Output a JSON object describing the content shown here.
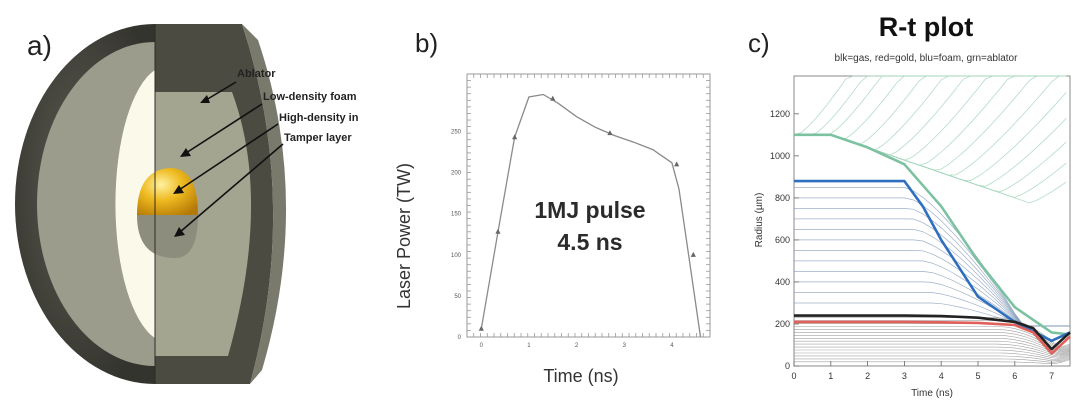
{
  "panel_a": {
    "letter": "a)",
    "labels": [
      "Ablator",
      "Low-density foam",
      "High-density in",
      "Tamper layer"
    ],
    "colors": {
      "ablator": "#4b4b41",
      "foam": "#a3a590",
      "fuel_gold": "#e8b21c",
      "tamper": "#8d8d7e",
      "cavity": "#fbf9ea"
    }
  },
  "panel_b": {
    "letter": "b)",
    "annotation_line1": "1MJ pulse",
    "annotation_line2": "4.5 ns",
    "xlabel": "Time (ns)",
    "ylabel": "Laser Power (TW)"
  },
  "panel_c": {
    "letter": "c)",
    "title": "R-t plot",
    "subtitle": "blk=gas, red=gold, blu=foam, grn=ablator",
    "xlabel": "Time (ns)",
    "ylabel": "Radius (µm)"
  },
  "chart_data": [
    {
      "type": "line",
      "title": "",
      "xlabel": "Time (ns)",
      "ylabel": "Laser Power (TW)",
      "xlim": [
        -0.3,
        4.8
      ],
      "ylim": [
        0,
        320
      ],
      "x_ticks": [
        0,
        1,
        2,
        3,
        4
      ],
      "x_tick_labels": [
        "0",
        "1",
        "2",
        "3",
        "4"
      ],
      "y_ticks": [
        0,
        50,
        100,
        150,
        200,
        250
      ],
      "y_tick_labels": [
        "0",
        "50",
        "100",
        "150",
        "200",
        "250"
      ],
      "series": [
        {
          "x": [
            0,
            0.35,
            0.7,
            1.0,
            1.3,
            1.6,
            2.0,
            2.4,
            2.8,
            3.2,
            3.6,
            4.0,
            4.15,
            4.35,
            4.6
          ],
          "y": [
            10,
            128,
            243,
            292,
            295,
            285,
            268,
            255,
            245,
            237,
            228,
            212,
            180,
            100,
            0
          ]
        }
      ],
      "markers": {
        "x": [
          0,
          0.35,
          0.7,
          1.5,
          2.7,
          4.1,
          4.45
        ],
        "y": [
          10,
          128,
          243,
          290,
          248,
          210,
          100
        ]
      },
      "grid": false
    },
    {
      "type": "line",
      "title": "R-t plot",
      "subtitle": "blk=gas, red=gold, blu=foam, grn=ablator",
      "xlabel": "Time (ns)",
      "ylabel": "Radius (µm)",
      "xlim": [
        0,
        7.5
      ],
      "ylim": [
        0,
        1380
      ],
      "x_ticks": [
        0,
        1,
        2,
        3,
        4,
        5,
        6,
        7
      ],
      "x_tick_labels": [
        "0",
        "1",
        "2",
        "3",
        "4",
        "5",
        "6",
        "7"
      ],
      "y_ticks": [
        0,
        200,
        400,
        600,
        800,
        1000,
        1200
      ],
      "y_tick_labels": [
        "0",
        "200",
        "400",
        "600",
        "800",
        "1000",
        "1200"
      ],
      "series": [
        {
          "name": "grn=ablator",
          "color": "#7cc2a0",
          "x": [
            0,
            1,
            2,
            3,
            4,
            5,
            6,
            7,
            7.5
          ],
          "y": [
            1100,
            1100,
            1040,
            960,
            760,
            500,
            280,
            160,
            150
          ]
        },
        {
          "name": "blu=foam",
          "color": "#2f6fbf",
          "x": [
            0,
            1,
            2,
            3,
            3.5,
            4,
            5,
            6,
            7,
            7.5
          ],
          "y": [
            880,
            880,
            880,
            880,
            760,
            600,
            330,
            210,
            120,
            160
          ]
        },
        {
          "name": "blk=gas",
          "color": "#222222",
          "x": [
            0,
            1,
            2,
            3,
            4,
            5,
            6,
            6.5,
            7,
            7.5
          ],
          "y": [
            240,
            240,
            240,
            240,
            238,
            230,
            210,
            180,
            80,
            160
          ]
        },
        {
          "name": "red=gold",
          "color": "#e0605a",
          "x": [
            0,
            1,
            2,
            3,
            4,
            5,
            6,
            6.5,
            7,
            7.5
          ],
          "y": [
            210,
            210,
            210,
            210,
            208,
            205,
            195,
            160,
            60,
            140
          ]
        }
      ],
      "grid": false
    }
  ]
}
